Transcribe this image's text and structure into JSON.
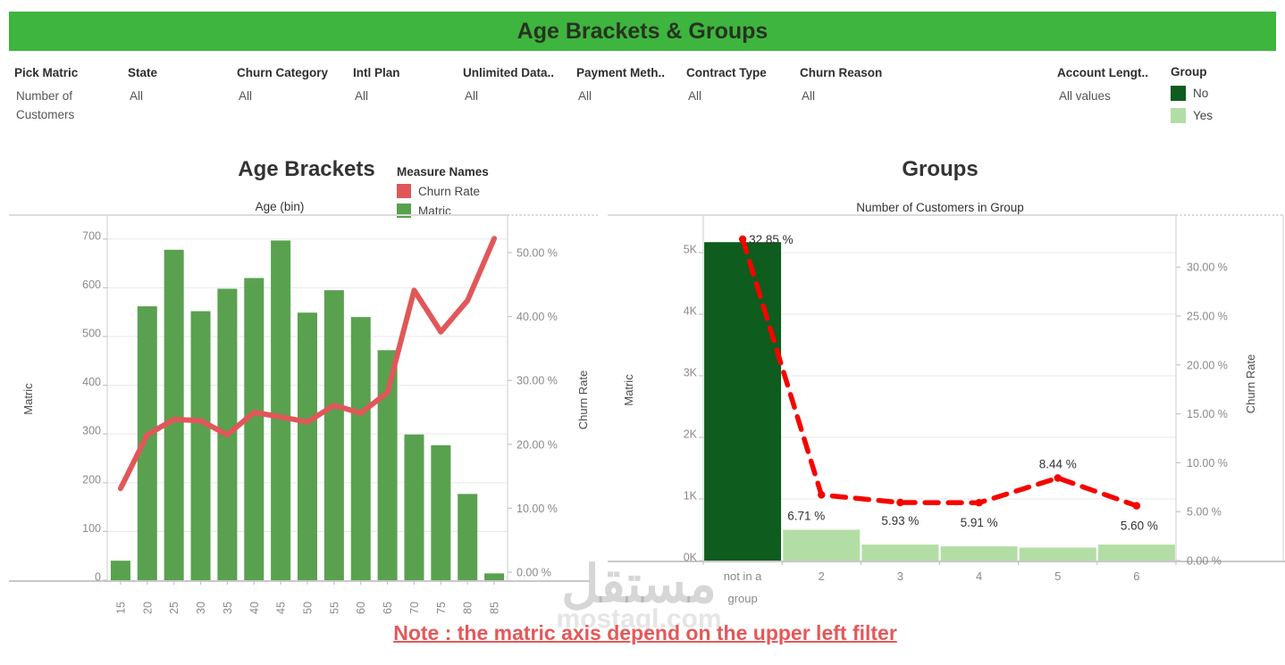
{
  "header": {
    "title": "Age Brackets & Groups"
  },
  "colors": {
    "header_green": "#3eb53e",
    "bar_green": "#59a14f",
    "soft_red": "#e15759",
    "bright_red": "#f50400",
    "dark_green": "#0e5c1e",
    "light_green": "#b2dea5",
    "note_red": "#e4585a"
  },
  "filters": [
    {
      "id": "pick-matric",
      "label": "Pick Matric",
      "value": "Number of Customers"
    },
    {
      "id": "state",
      "label": "State",
      "value": "All"
    },
    {
      "id": "churn-category",
      "label": "Churn Category",
      "value": "All"
    },
    {
      "id": "intl-plan",
      "label": "Intl Plan",
      "value": "All"
    },
    {
      "id": "unlimited-data",
      "label": "Unlimited Data..",
      "value": "All"
    },
    {
      "id": "payment-method",
      "label": "Payment Meth..",
      "value": "All"
    },
    {
      "id": "contract-type",
      "label": "Contract Type",
      "value": "All"
    },
    {
      "id": "churn-reason",
      "label": "Churn Reason",
      "value": "All"
    },
    {
      "id": "account-length",
      "label": "Account Lengt..",
      "value": "All values"
    }
  ],
  "group_legend": {
    "title": "Group",
    "items": [
      {
        "label": "No",
        "color": "#0e5c1e"
      },
      {
        "label": "Yes",
        "color": "#b2dea5"
      }
    ]
  },
  "note": {
    "text": "Note : the matric axis depend on the upper left filter"
  },
  "watermark": {
    "name": "مستقل",
    "domain": "mostaql.com"
  },
  "chart_data": [
    {
      "id": "age-brackets",
      "type": "bar",
      "title": "Age Brackets",
      "legend_title": "Measure Names",
      "legend": [
        {
          "label": "Churn Rate",
          "color": "#e15759"
        },
        {
          "label": "Matric",
          "color": "#59a14f"
        }
      ],
      "xlabel": "Age (bin)",
      "categories": [
        "15",
        "20",
        "25",
        "30",
        "35",
        "40",
        "45",
        "50",
        "55",
        "60",
        "65",
        "70",
        "75",
        "80",
        "85"
      ],
      "series": [
        {
          "name": "Matric",
          "kind": "bar",
          "axis": "left",
          "color": "#59a14f",
          "values": [
            40,
            562,
            678,
            552,
            598,
            620,
            697,
            549,
            595,
            540,
            472,
            299,
            277,
            177,
            14
          ]
        },
        {
          "name": "Churn Rate",
          "kind": "line",
          "axis": "right",
          "color": "#e15759",
          "dashed": false,
          "values": [
            13.1,
            21.5,
            23.9,
            23.7,
            21.5,
            25.0,
            24.3,
            23.5,
            26.1,
            24.9,
            28.1,
            44.1,
            37.6,
            42.5,
            52.2
          ]
        }
      ],
      "left_axis": {
        "title": "Matric",
        "ticks": [
          0,
          100,
          200,
          300,
          400,
          500,
          600,
          700
        ],
        "format": "plain",
        "min": 0,
        "max": 750
      },
      "right_axis": {
        "title": "Churn Rate",
        "ticks": [
          0,
          10,
          20,
          30,
          40,
          50
        ],
        "format": "percent",
        "min": 0,
        "max": 55
      },
      "grid": true,
      "legend_position": "top-right"
    },
    {
      "id": "groups",
      "type": "bar",
      "title": "Groups",
      "subtitle": "Number of Customers in Group",
      "categories": [
        "not in a group",
        "2",
        "3",
        "4",
        "5",
        "6"
      ],
      "series": [
        {
          "name": "Matric",
          "kind": "bar",
          "axis": "left",
          "colors": [
            "#0e5c1e",
            "#b2dea5",
            "#b2dea5",
            "#b2dea5",
            "#b2dea5",
            "#b2dea5"
          ],
          "values": [
            5170,
            500,
            260,
            230,
            210,
            260
          ]
        },
        {
          "name": "Churn Rate",
          "kind": "line",
          "axis": "right",
          "color": "#f50400",
          "dashed": true,
          "values": [
            32.85,
            6.71,
            5.93,
            5.91,
            8.44,
            5.6
          ],
          "point_labels": [
            "32.85 %",
            "6.71 %",
            "5.93 %",
            "5.91 %",
            "8.44 %",
            "5.60 %"
          ]
        }
      ],
      "left_axis": {
        "title": "Matric",
        "ticks": [
          0,
          1000,
          2000,
          3000,
          4000,
          5000
        ],
        "format": "k",
        "min": 0,
        "max": 5600
      },
      "right_axis": {
        "title": "Churn Rate",
        "ticks": [
          0,
          5,
          10,
          15,
          20,
          25,
          30
        ],
        "format": "percent",
        "min": 0,
        "max": 33.5
      },
      "grid": true
    }
  ]
}
